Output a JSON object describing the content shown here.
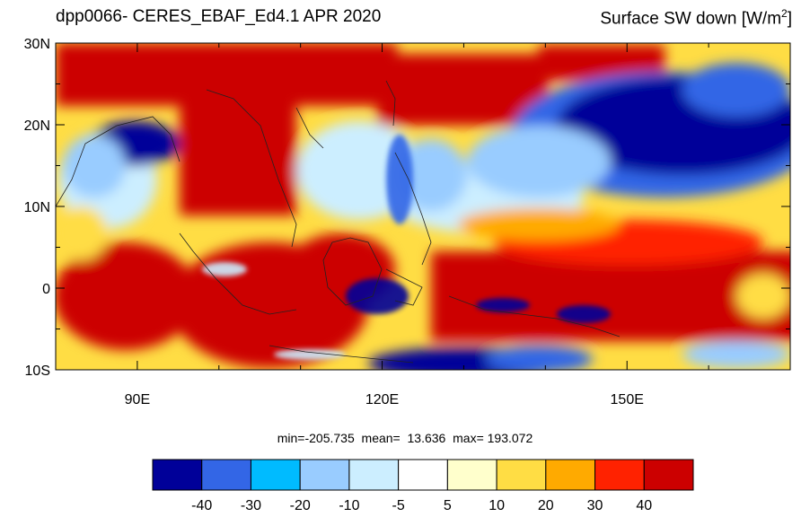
{
  "header": {
    "title_left": "dpp0066- CERES_EBAF_Ed4.1  APR 2020",
    "title_right_main": "Surface SW down [W/m",
    "title_right_sup": "2",
    "title_right_close": "]"
  },
  "map": {
    "lat_labels": [
      "30N",
      "20N",
      "10N",
      "0",
      "10S"
    ],
    "lon_labels": [
      "90E",
      "120E",
      "150E"
    ],
    "lat_values": [
      30,
      20,
      10,
      0,
      -10
    ],
    "lon_values": [
      90,
      120,
      150
    ],
    "lon_range": [
      80,
      170
    ],
    "lat_range": [
      -10,
      30
    ]
  },
  "stats": {
    "min_label": "min=",
    "min_value": "-205.735",
    "mean_label": "mean=",
    "mean_value": "13.636",
    "max_label": "max=",
    "max_value": "193.072"
  },
  "colorbar": {
    "colors": [
      "#000099",
      "#3366e6",
      "#00bbff",
      "#99ccff",
      "#cceeff",
      "#ffffff",
      "#ffffcc",
      "#ffdd44",
      "#ffaa00",
      "#ff2200",
      "#cc0000"
    ],
    "labels": [
      "-40",
      "-30",
      "-20",
      "-10",
      "-5",
      "5",
      "10",
      "20",
      "30",
      "40"
    ]
  }
}
